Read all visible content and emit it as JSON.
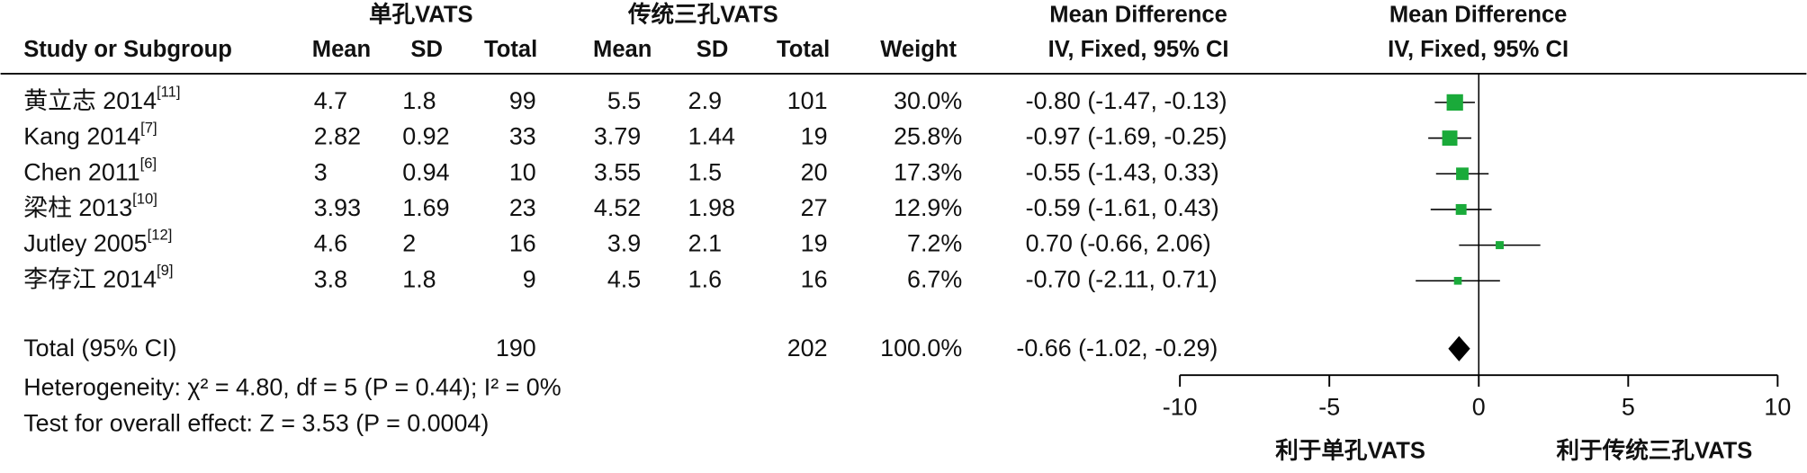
{
  "chart_data": {
    "type": "forest",
    "group_headers": [
      "单孔VATS",
      "传统三孔VATS"
    ],
    "column_headers": [
      "Study or Subgroup",
      "Mean",
      "SD",
      "Total",
      "Mean",
      "SD",
      "Total",
      "Weight",
      "IV, Fixed, 95% CI",
      "IV, Fixed, 95% CI"
    ],
    "effect_header": "Mean Difference",
    "studies": [
      {
        "study": "黄立志 2014",
        "ref": "[11]",
        "mean1": 4.7,
        "sd1": 1.8,
        "n1": 99,
        "mean2": 5.5,
        "sd2": 2.9,
        "n2": 101,
        "weight": 30,
        "weight_label": "30.0%",
        "md": -0.8,
        "ci": [
          -1.47,
          -0.13
        ],
        "md_label": "-0.80 (-1.47, -0.13)"
      },
      {
        "study": "Kang 2014",
        "ref": "[7]",
        "mean1": 2.82,
        "sd1": 0.92,
        "n1": 33,
        "mean2": 3.79,
        "sd2": 1.44,
        "n2": 19,
        "weight": 25.8,
        "weight_label": "25.8%",
        "md": -0.97,
        "ci": [
          -1.69,
          -0.25
        ],
        "md_label": "-0.97 (-1.69, -0.25)"
      },
      {
        "study": "Chen 2011",
        "ref": "[6]",
        "mean1": 3,
        "sd1": 0.94,
        "n1": 10,
        "mean2": 3.55,
        "sd2": 1.5,
        "n2": 20,
        "weight": 17.3,
        "weight_label": "17.3%",
        "md": -0.55,
        "ci": [
          -1.43,
          0.33
        ],
        "md_label": "-0.55 (-1.43, 0.33)"
      },
      {
        "study": "梁柱 2013",
        "ref": "[10]",
        "mean1": 3.93,
        "sd1": 1.69,
        "n1": 23,
        "mean2": 4.52,
        "sd2": 1.98,
        "n2": 27,
        "weight": 12.9,
        "weight_label": "12.9%",
        "md": -0.59,
        "ci": [
          -1.61,
          0.43
        ],
        "md_label": "-0.59 (-1.61, 0.43)"
      },
      {
        "study": "Jutley 2005",
        "ref": "[12]",
        "mean1": 4.6,
        "sd1": 2,
        "n1": 16,
        "mean2": 3.9,
        "sd2": 2.1,
        "n2": 19,
        "weight": 7.2,
        "weight_label": "7.2%",
        "md": 0.7,
        "ci": [
          -0.66,
          2.06
        ],
        "md_label": "0.70 (-0.66, 2.06)"
      },
      {
        "study": "李存江 2014",
        "ref": "[9]",
        "mean1": 3.8,
        "sd1": 1.8,
        "n1": 9,
        "mean2": 4.5,
        "sd2": 1.6,
        "n2": 16,
        "weight": 6.7,
        "weight_label": "6.7%",
        "md": -0.7,
        "ci": [
          -2.11,
          0.71
        ],
        "md_label": "-0.70 (-2.11, 0.71)"
      }
    ],
    "total": {
      "study": "Total (95% CI)",
      "n1": 190,
      "n2": 202,
      "weight": 100,
      "weight_label": "100.0%",
      "md": -0.66,
      "ci": [
        -1.02,
        -0.29
      ],
      "md_label": "-0.66 (-1.02, -0.29)"
    },
    "heterogeneity": "Heterogeneity: χ² = 4.80, df = 5 (P = 0.44); I² = 0%",
    "overall_effect": "Test for overall effect: Z = 3.53 (P = 0.0004)",
    "xlim": [
      -10,
      10
    ],
    "xticks": [
      -10,
      -5,
      0,
      5,
      10
    ],
    "xlabel_left": "利于单孔VATS",
    "xlabel_right": "利于传统三孔VATS",
    "color": "#1aaa3a",
    "diamond_color": "#000000"
  }
}
